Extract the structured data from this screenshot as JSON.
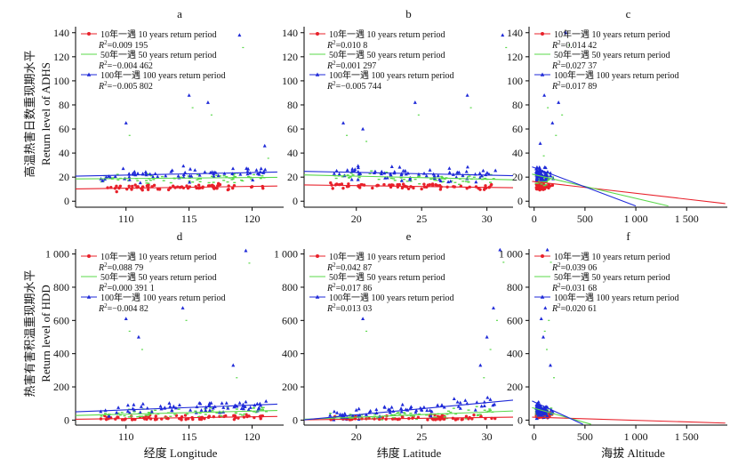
{
  "row_labels": [
    {
      "cn": "高温热害日数重现期水平",
      "en": "Return level of ADHS"
    },
    {
      "cn": "热害有害积温重现期水平",
      "en": "Return level of HDD"
    }
  ],
  "column_labels": [
    "经度 Longitude",
    "纬度 Latitude",
    "海拔 Altitude"
  ],
  "series_labels": [
    "10年一遇 10 years return period",
    "50年一遇 50 years return period",
    "100年一遇 100 years return period"
  ],
  "colors": {
    "10": "#e8202a",
    "50": "#5ad84a",
    "100": "#1f2ad8"
  },
  "chart_data": [
    {
      "type": "scatter",
      "panel": "a",
      "x_var": "longitude",
      "xlim": [
        106,
        122.5
      ],
      "ylim": [
        -5,
        145
      ],
      "xticks": [
        "110",
        "115",
        "120"
      ],
      "yticks": [
        "0",
        "20",
        "40",
        "60",
        "80",
        "100",
        "120",
        "140"
      ],
      "series": [
        {
          "name": "10年一遇 10 years return period",
          "r2": "0.009 195",
          "line": [
            [
              106,
              10.2
            ],
            [
              122,
              12.6
            ]
          ]
        },
        {
          "name": "50年一遇 50 years return period",
          "r2": "−0.004 462",
          "line": [
            [
              106,
              18.5
            ],
            [
              122,
              19.8
            ]
          ]
        },
        {
          "name": "100年一遇 100 years return period",
          "r2": "−0.005 802",
          "line": [
            [
              106,
              20.8
            ],
            [
              122,
              24.2
            ]
          ]
        }
      ],
      "outliers": [
        [
          110,
          65
        ],
        [
          115,
          88
        ],
        [
          116.5,
          82
        ],
        [
          119,
          138
        ],
        [
          121,
          46
        ]
      ]
    },
    {
      "type": "scatter",
      "panel": "b",
      "x_var": "latitude",
      "xlim": [
        16,
        32
      ],
      "ylim": [
        -5,
        145
      ],
      "xticks": [
        "20",
        "25",
        "30"
      ],
      "yticks": [
        "0",
        "20",
        "40",
        "60",
        "80",
        "100",
        "120",
        "140"
      ],
      "series": [
        {
          "name": "10年一遇 10 years return period",
          "r2": "0.010 8",
          "line": [
            [
              16,
              13.5
            ],
            [
              32,
              11.2
            ]
          ]
        },
        {
          "name": "50年一遇 50 years return period",
          "r2": "0.001 297",
          "line": [
            [
              16,
              21.8
            ],
            [
              32,
              17.8
            ]
          ]
        },
        {
          "name": "100年一遇 100 years return period",
          "r2": "−0.005 744",
          "line": [
            [
              16,
              24.8
            ],
            [
              32,
              21.2
            ]
          ]
        }
      ],
      "outliers": [
        [
          19,
          65
        ],
        [
          20.5,
          60
        ],
        [
          24.5,
          82
        ],
        [
          28.5,
          88
        ],
        [
          31.2,
          138
        ]
      ]
    },
    {
      "type": "scatter",
      "panel": "c",
      "x_var": "altitude",
      "xlim": [
        -50,
        1900
      ],
      "ylim": [
        -5,
        145
      ],
      "xticks": [
        "0",
        "500",
        "1 000",
        "1 500"
      ],
      "yticks": [
        "0",
        "20",
        "40",
        "60",
        "80",
        "100",
        "120",
        "140"
      ],
      "series": [
        {
          "name": "10年一遇 10 years return period",
          "r2": "0.014 42",
          "line": [
            [
              -20,
              16.5
            ],
            [
              1880,
              -2
            ]
          ]
        },
        {
          "name": "50年一遇 50 years return period",
          "r2": "0.027 37",
          "line": [
            [
              -20,
              22.5
            ],
            [
              1320,
              -4
            ]
          ]
        },
        {
          "name": "100年一遇 100 years return period",
          "r2": "0.017 89",
          "line": [
            [
              -20,
              28.5
            ],
            [
              1000,
              -4
            ]
          ]
        }
      ],
      "outliers": [
        [
          100,
          88
        ],
        [
          180,
          65
        ],
        [
          240,
          82
        ],
        [
          60,
          48
        ],
        [
          310,
          140
        ]
      ]
    },
    {
      "type": "scatter",
      "panel": "d",
      "x_var": "longitude",
      "xlim": [
        106,
        122.5
      ],
      "ylim": [
        -30,
        1030
      ],
      "xticks": [
        "110",
        "115",
        "120"
      ],
      "yticks": [
        "0",
        "200",
        "400",
        "600",
        "800",
        "1 000"
      ],
      "series": [
        {
          "name": "10年一遇 10 years return period",
          "r2": "0.088 79",
          "line": [
            [
              106,
              5
            ],
            [
              122,
              22
            ]
          ]
        },
        {
          "name": "50年一遇 50 years return period",
          "r2": "0.000 391 1",
          "line": [
            [
              106,
              28
            ],
            [
              122,
              58
            ]
          ]
        },
        {
          "name": "100年一遇 100 years return period",
          "r2": "−0.004 82",
          "line": [
            [
              106,
              50
            ],
            [
              122,
              96
            ]
          ]
        }
      ],
      "outliers": [
        [
          110,
          610
        ],
        [
          111,
          500
        ],
        [
          114.5,
          675
        ],
        [
          119.5,
          1020
        ],
        [
          118.5,
          330
        ]
      ]
    },
    {
      "type": "scatter",
      "panel": "e",
      "x_var": "latitude",
      "xlim": [
        16,
        32
      ],
      "ylim": [
        -30,
        1030
      ],
      "xticks": [
        "20",
        "25",
        "30"
      ],
      "yticks": [
        "0",
        "200",
        "400",
        "600",
        "800",
        "1 000"
      ],
      "series": [
        {
          "name": "10年一遇 10 years return period",
          "r2": "0.042 87",
          "line": [
            [
              16,
              2
            ],
            [
              32,
              18
            ]
          ]
        },
        {
          "name": "50年一遇 50 years return period",
          "r2": "0.017 86",
          "line": [
            [
              16,
              5
            ],
            [
              32,
              55
            ]
          ]
        },
        {
          "name": "100年一遇 100 years return period",
          "r2": "0.013 03",
          "line": [
            [
              16,
              2
            ],
            [
              32,
              120
            ]
          ]
        }
      ],
      "outliers": [
        [
          20.5,
          610
        ],
        [
          30,
          500
        ],
        [
          30.5,
          675
        ],
        [
          31,
          1025
        ],
        [
          29.5,
          330
        ]
      ]
    },
    {
      "type": "scatter",
      "panel": "f",
      "x_var": "altitude",
      "xlim": [
        -50,
        1900
      ],
      "ylim": [
        -30,
        1030
      ],
      "xticks": [
        "0",
        "500",
        "1 000",
        "1 500"
      ],
      "yticks": [
        "0",
        "200",
        "400",
        "600",
        "800",
        "1 000"
      ],
      "series": [
        {
          "name": "10年一遇 10 years return period",
          "r2": "0.039 06",
          "line": [
            [
              -20,
              18
            ],
            [
              1880,
              -18
            ]
          ]
        },
        {
          "name": "50年一遇 50 years return period",
          "r2": "0.031 68",
          "line": [
            [
              -20,
              75
            ],
            [
              560,
              -25
            ]
          ]
        },
        {
          "name": "100年一遇 100 years return period",
          "r2": "0.020 61",
          "line": [
            [
              -20,
              115
            ],
            [
              480,
              -25
            ]
          ]
        }
      ],
      "outliers": [
        [
          70,
          610
        ],
        [
          110,
          675
        ],
        [
          130,
          1025
        ],
        [
          90,
          500
        ],
        [
          160,
          330
        ]
      ]
    }
  ]
}
